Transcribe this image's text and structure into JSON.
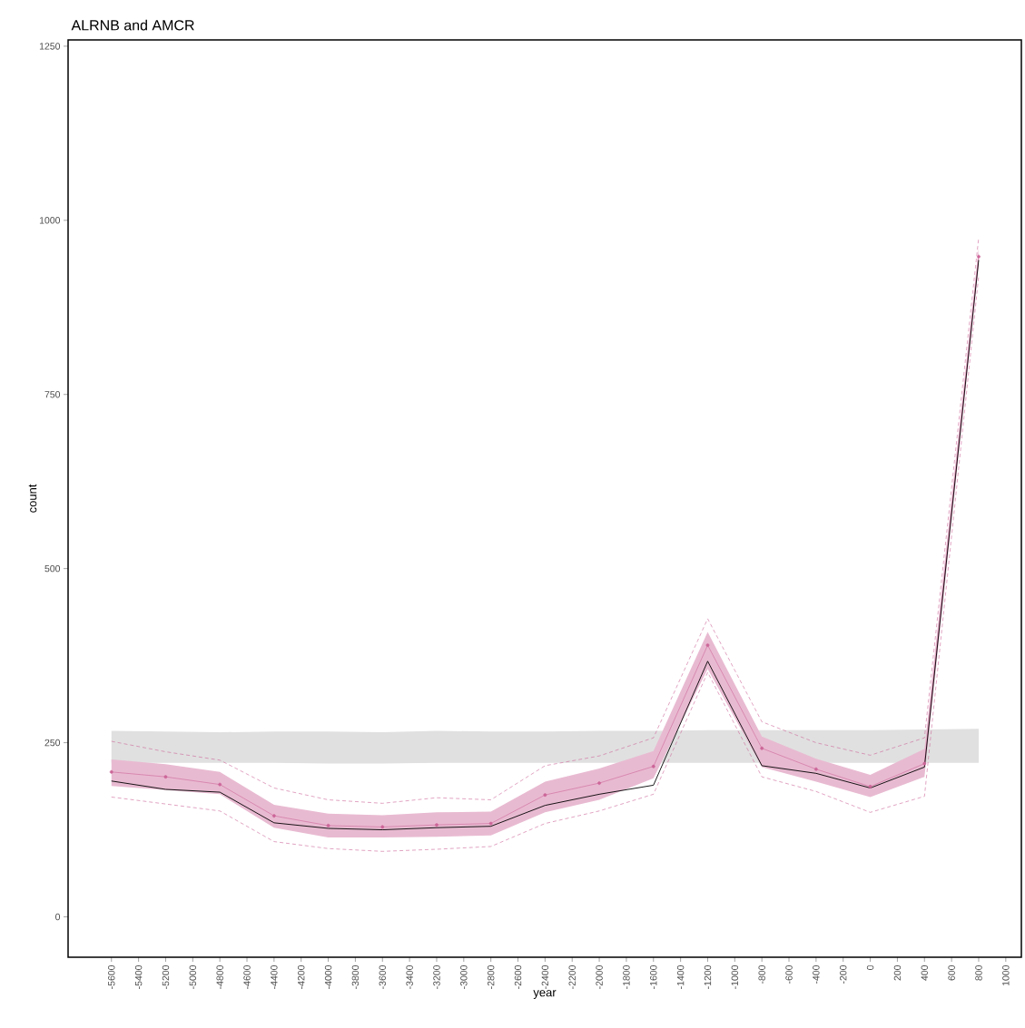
{
  "chart_data": {
    "type": "line",
    "title": "ALRNB and AMCR",
    "xlabel": "year",
    "ylabel": "count",
    "x": [
      -5600,
      -5200,
      -4800,
      -4400,
      -4000,
      -3600,
      -3200,
      -2800,
      -2400,
      -2000,
      -1600,
      -1200,
      -800,
      -400,
      0,
      400,
      800
    ],
    "series": [
      {
        "type": "area",
        "color": "#e0e0e0",
        "values": [
          null,
          null,
          null,
          null,
          null,
          null,
          null,
          null,
          null,
          null,
          null,
          null,
          null,
          null,
          null,
          null,
          null
        ],
        "lower": [
          221,
          221,
          221,
          221,
          220,
          220,
          221,
          221,
          221,
          221,
          221,
          221,
          221,
          221,
          221,
          221,
          221
        ],
        "upper": [
          267,
          266,
          265,
          266,
          266,
          265,
          267,
          266,
          266,
          267,
          267,
          268,
          268,
          268,
          268,
          269,
          270
        ]
      },
      {
        "color": "#cc6699",
        "marker": "circle",
        "values": [
          208,
          201,
          190,
          145,
          131,
          129,
          132,
          134,
          175,
          192,
          216,
          390,
          242,
          212,
          187,
          220,
          948
        ],
        "lower": [
          188,
          182,
          176,
          128,
          114,
          114,
          115,
          117,
          150,
          168,
          199,
          356,
          215,
          194,
          172,
          201,
          935
        ],
        "upper": [
          226,
          219,
          208,
          161,
          148,
          146,
          150,
          151,
          194,
          213,
          238,
          409,
          259,
          227,
          204,
          241,
          960
        ]
      },
      {
        "color": "#cc6699",
        "line_style": "dashed",
        "values": [
          252,
          237,
          225,
          185,
          168,
          163,
          171,
          168,
          217,
          231,
          257,
          428,
          280,
          250,
          232,
          257,
          975
        ]
      },
      {
        "color": "#cc6699",
        "line_style": "dashed",
        "values": [
          172,
          162,
          152,
          108,
          98,
          94,
          97,
          101,
          134,
          152,
          176,
          351,
          201,
          180,
          150,
          173,
          920
        ]
      },
      {
        "color": "#000000",
        "values": [
          195,
          183,
          179,
          135,
          127,
          125,
          128,
          130,
          160,
          176,
          189,
          367,
          217,
          206,
          185,
          215,
          943
        ]
      }
    ],
    "xlim": [
      -5920,
      1115
    ],
    "ylim": [
      -58,
      1259
    ],
    "xticks": [
      -5600,
      -5400,
      -5200,
      -5000,
      -4800,
      -4600,
      -4400,
      -4200,
      -4000,
      -3800,
      -3600,
      -3400,
      -3200,
      -3000,
      -2800,
      -2600,
      -2400,
      -2200,
      -2000,
      -1800,
      -1600,
      -1400,
      -1200,
      -1000,
      -800,
      -600,
      -400,
      -200,
      0,
      200,
      400,
      600,
      800,
      1000
    ],
    "yticks": [
      0,
      250,
      500,
      750,
      1000,
      1250
    ]
  }
}
